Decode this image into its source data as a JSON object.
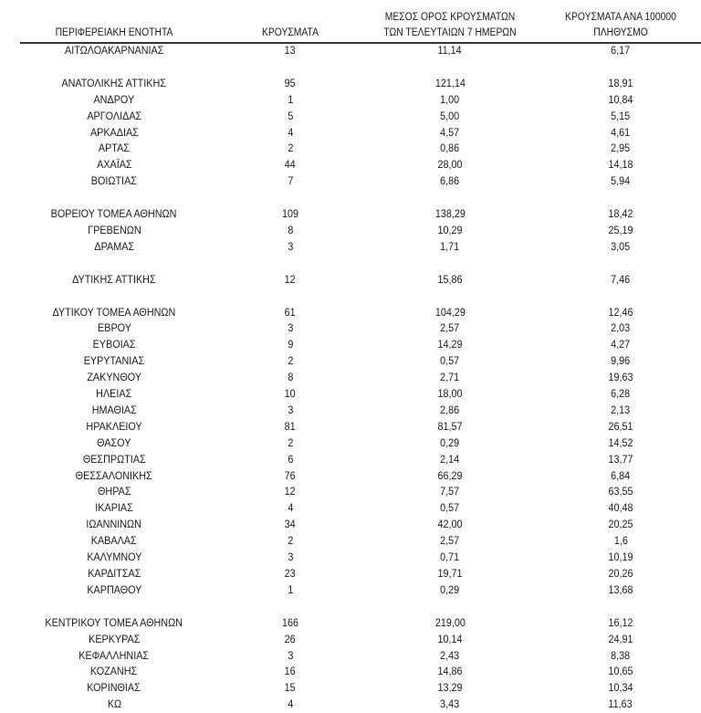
{
  "headers": {
    "region": "ΠΕΡΙΦΕΡΕΙΑΚΗ ΕΝΟΤΗΤΑ",
    "cases": "ΚΡΟΥΣΜΑΤΑ",
    "avg_line1": "ΜΕΣΟΣ ΟΡΟΣ ΚΡΟΥΣΜΑΤΩΝ",
    "avg_line2": "ΤΩΝ ΤΕΛΕΥΤΑΙΩΝ 7 ΗΜΕΡΩΝ",
    "per100k_line1": "ΚΡΟΥΣΜΑΤΑ ΑΝΑ 100000",
    "per100k_line2": "ΠΛΗΘΥΣΜΟ"
  },
  "rows": [
    [
      "ΑΙΤΩΛΟΑΚΑΡΝΑΝΙΑΣ",
      "13",
      "11,14",
      "6,17"
    ],
    [
      "",
      "",
      "",
      ""
    ],
    [
      "ΑΝΑΤΟΛΙΚΗΣ ΑΤΤΙΚΗΣ",
      "95",
      "121,14",
      "18,91"
    ],
    [
      "ΑΝΔΡΟΥ",
      "1",
      "1,00",
      "10,84"
    ],
    [
      "ΑΡΓΟΛΙΔΑΣ",
      "5",
      "5,00",
      "5,15"
    ],
    [
      "ΑΡΚΑΔΙΑΣ",
      "4",
      "4,57",
      "4,61"
    ],
    [
      "ΑΡΤΑΣ",
      "2",
      "0,86",
      "2,95"
    ],
    [
      "ΑΧΑΪΑΣ",
      "44",
      "28,00",
      "14,18"
    ],
    [
      "ΒΟΙΩΤΙΑΣ",
      "7",
      "6,86",
      "5,94"
    ],
    [
      "",
      "",
      "",
      ""
    ],
    [
      "ΒΟΡΕΙΟΥ ΤΟΜΕΑ ΑΘΗΝΩΝ",
      "109",
      "138,29",
      "18,42"
    ],
    [
      "ΓΡΕΒΕΝΩΝ",
      "8",
      "10,29",
      "25,19"
    ],
    [
      "ΔΡΑΜΑΣ",
      "3",
      "1,71",
      "3,05"
    ],
    [
      "",
      "",
      "",
      ""
    ],
    [
      "ΔΥΤΙΚΗΣ ΑΤΤΙΚΗΣ",
      "12",
      "15,86",
      "7,46"
    ],
    [
      "",
      "",
      "",
      ""
    ],
    [
      "ΔΥΤΙΚΟΥ ΤΟΜΕΑ ΑΘΗΝΩΝ",
      "61",
      "104,29",
      "12,46"
    ],
    [
      "ΕΒΡΟΥ",
      "3",
      "2,57",
      "2,03"
    ],
    [
      "ΕΥΒΟΙΑΣ",
      "9",
      "14,29",
      "4,27"
    ],
    [
      "ΕΥΡΥΤΑΝΙΑΣ",
      "2",
      "0,57",
      "9,96"
    ],
    [
      "ΖΑΚΥΝΘΟΥ",
      "8",
      "2,71",
      "19,63"
    ],
    [
      "ΗΛΕΙΑΣ",
      "10",
      "18,00",
      "6,28"
    ],
    [
      "ΗΜΑΘΙΑΣ",
      "3",
      "2,86",
      "2,13"
    ],
    [
      "ΗΡΑΚΛΕΙΟΥ",
      "81",
      "81,57",
      "26,51"
    ],
    [
      "ΘΑΣΟΥ",
      "2",
      "0,29",
      "14,52"
    ],
    [
      "ΘΕΣΠΡΩΤΙΑΣ",
      "6",
      "2,14",
      "13,77"
    ],
    [
      "ΘΕΣΣΑΛΟΝΙΚΗΣ",
      "76",
      "66,29",
      "6,84"
    ],
    [
      "ΘΗΡΑΣ",
      "12",
      "7,57",
      "63,55"
    ],
    [
      "ΙΚΑΡΙΑΣ",
      "4",
      "0,57",
      "40,48"
    ],
    [
      "ΙΩΑΝΝΙΝΩΝ",
      "34",
      "42,00",
      "20,25"
    ],
    [
      "ΚΑΒΑΛΑΣ",
      "2",
      "2,57",
      "1,6"
    ],
    [
      "ΚΑΛΥΜΝΟΥ",
      "3",
      "0,71",
      "10,19"
    ],
    [
      "ΚΑΡΔΙΤΣΑΣ",
      "23",
      "19,71",
      "20,26"
    ],
    [
      "ΚΑΡΠΑΘΟΥ",
      "1",
      "0,29",
      "13,68"
    ],
    [
      "",
      "",
      "",
      ""
    ],
    [
      "ΚΕΝΤΡΙΚΟΥ ΤΟΜΕΑ ΑΘΗΝΩΝ",
      "166",
      "219,00",
      "16,12"
    ],
    [
      "ΚΕΡΚΥΡΑΣ",
      "26",
      "10,14",
      "24,91"
    ],
    [
      "ΚΕΦΑΛΛΗΝΙΑΣ",
      "3",
      "2,43",
      "8,38"
    ],
    [
      "ΚΟΖΑΝΗΣ",
      "16",
      "14,86",
      "10,65"
    ],
    [
      "ΚΟΡΙΝΘΙΑΣ",
      "15",
      "13,29",
      "10,34"
    ],
    [
      "ΚΩ",
      "4",
      "3,43",
      "11,63"
    ]
  ]
}
